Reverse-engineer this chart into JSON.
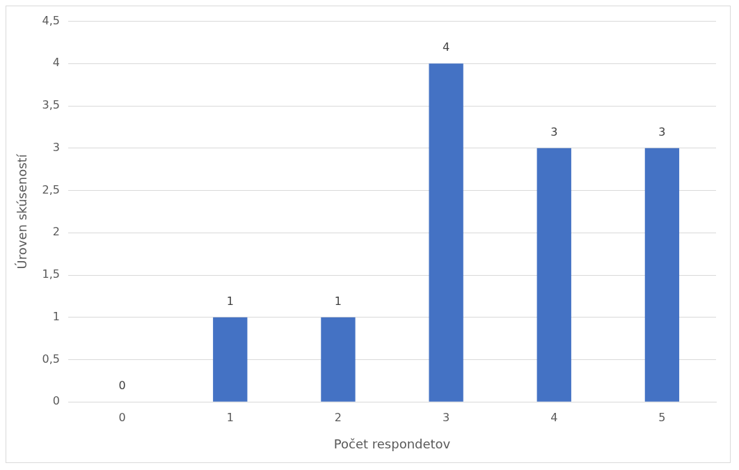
{
  "chart_data": {
    "type": "bar",
    "xlabel": "Počet respondetov",
    "ylabel": "Úroven skúseností",
    "categories": [
      "0",
      "1",
      "2",
      "3",
      "4",
      "5"
    ],
    "values": [
      0,
      1,
      1,
      4,
      3,
      3
    ],
    "color": "#4472c4",
    "ylim": [
      0,
      4.5
    ],
    "yticks": [
      0,
      {
        "value": 0.5,
        "label": "0,5"
      },
      1,
      {
        "value": 1.5,
        "label": "1,5"
      },
      2,
      {
        "value": 2.5,
        "label": "2,5"
      },
      3,
      {
        "value": 3.5,
        "label": "3,5"
      },
      4,
      {
        "value": 4.5,
        "label": "4,5"
      }
    ],
    "grid": "y",
    "data_labels": true,
    "legend": false
  }
}
